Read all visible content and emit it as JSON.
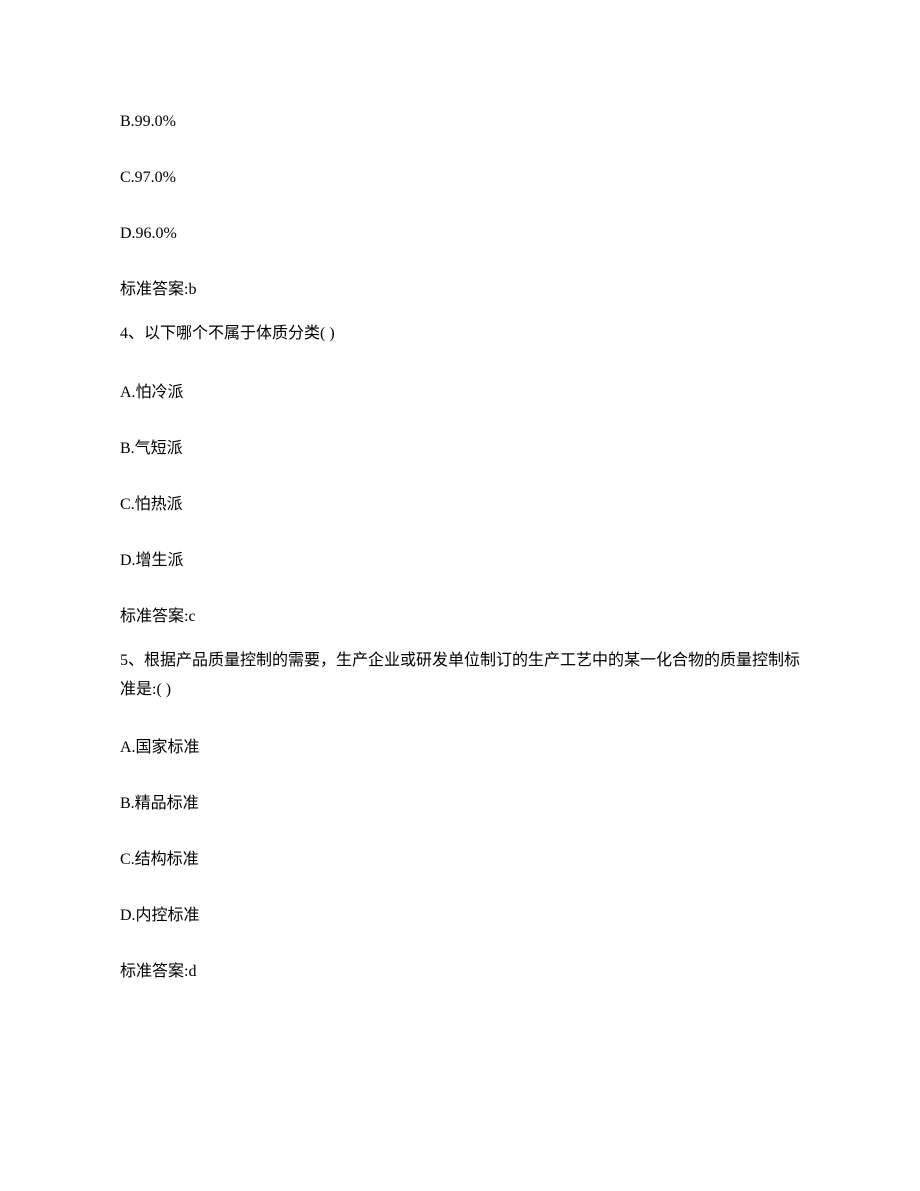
{
  "q3": {
    "optionB": "B.99.0%",
    "optionC": "C.97.0%",
    "optionD": "D.96.0%",
    "answerLabel": "标准答案:b"
  },
  "q4": {
    "question": "4、以下哪个不属于体质分类( )",
    "optionA": "A.怕冷派",
    "optionB": "B.气短派",
    "optionC": "C.怕热派",
    "optionD": "D.增生派",
    "answerLabel": "标准答案:c"
  },
  "q5": {
    "question": "5、根据产品质量控制的需要，生产企业或研发单位制订的生产工艺中的某一化合物的质量控制标准是:( )",
    "optionA": "A.国家标准",
    "optionB": "B.精品标准",
    "optionC": "C.结构标准",
    "optionD": "D.内控标准",
    "answerLabel": "标准答案:d"
  }
}
